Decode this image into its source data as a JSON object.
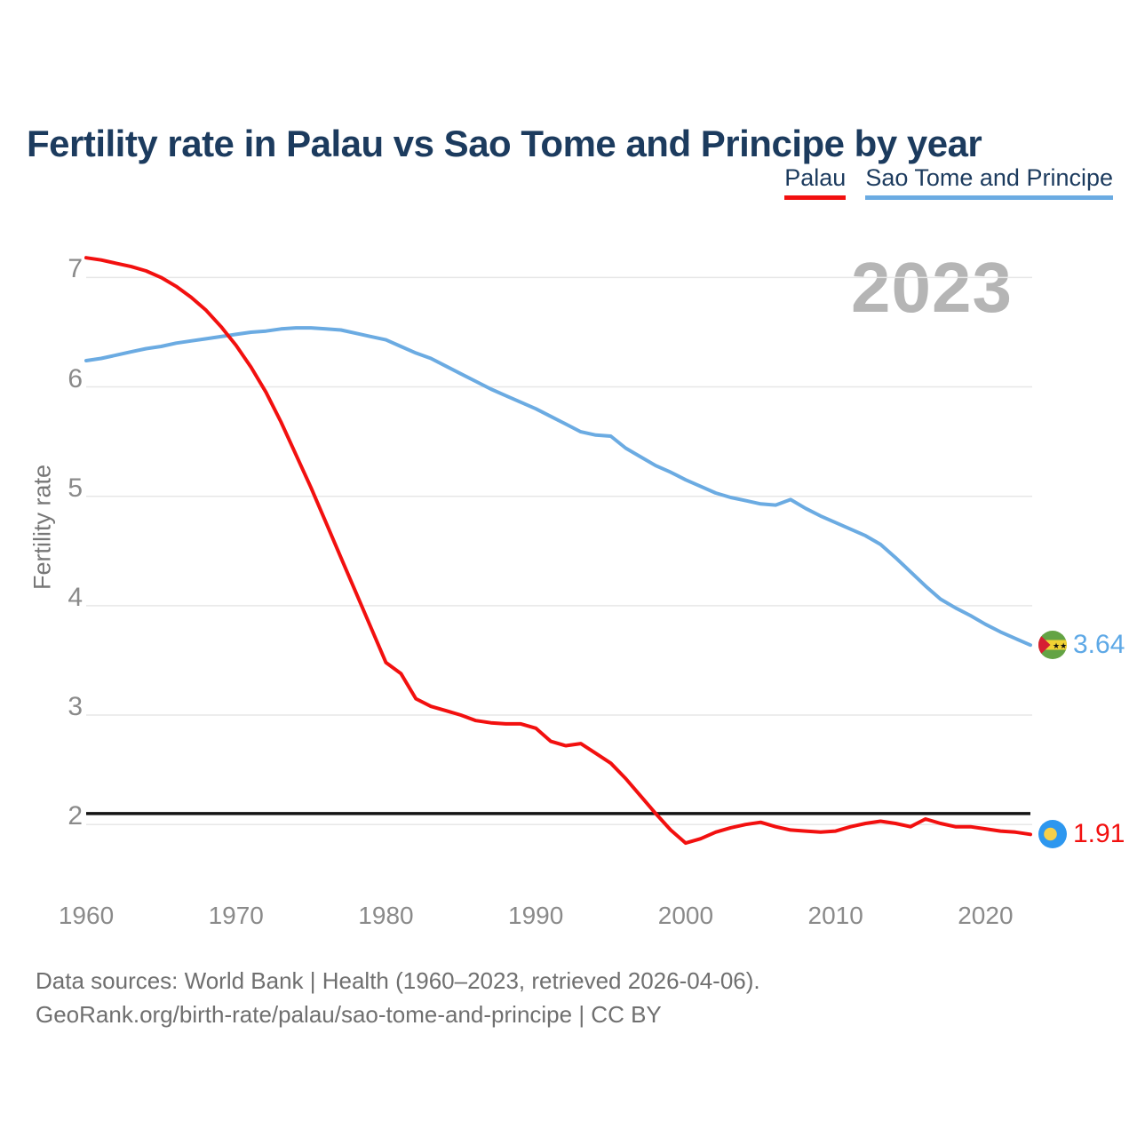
{
  "header": {
    "title": "Fertility rate in Palau vs Sao Tome and Principe by year"
  },
  "legend": {
    "items": [
      {
        "label": "Palau",
        "color": "#f2100f"
      },
      {
        "label": "Sao Tome and Principe",
        "color": "#6babe2"
      }
    ]
  },
  "watermark": "2023",
  "axes": {
    "y_title": "Fertility rate",
    "y_ticks": [
      7,
      6,
      5,
      4,
      3,
      2
    ],
    "x_ticks": [
      1960,
      1970,
      1980,
      1990,
      2000,
      2010,
      2020
    ]
  },
  "annotations": {
    "sao_tome_end_value": "3.64",
    "palau_end_value": "1.91"
  },
  "footer": {
    "line1": "Data sources: World Bank | Health (1960–2023, retrieved 2026-04-06).",
    "line2": "GeoRank.org/birth-rate/palau/sao-tome-and-principe | CC BY"
  },
  "colors": {
    "palau_line": "#f2100f",
    "sao_tome_line": "#6babe2",
    "title_text": "#1c3b5e",
    "axis_text": "#8a8a8a",
    "footer_text": "#6f6f6f",
    "gridline": "#e7e7e7",
    "reference_line": "#141414",
    "watermark": "#b5b5b5"
  },
  "chart_data": {
    "type": "line",
    "title": "Fertility rate in Palau vs Sao Tome and Principe by year",
    "xlabel": "",
    "ylabel": "Fertility rate",
    "x_range": [
      1960,
      2023
    ],
    "ylim": [
      1.6,
      7.4
    ],
    "grid": "horizontal",
    "legend_position": "top-right",
    "reference_line": 2.1,
    "x": [
      1960,
      1961,
      1962,
      1963,
      1964,
      1965,
      1966,
      1967,
      1968,
      1969,
      1970,
      1971,
      1972,
      1973,
      1974,
      1975,
      1976,
      1977,
      1978,
      1979,
      1980,
      1981,
      1982,
      1983,
      1984,
      1985,
      1986,
      1987,
      1988,
      1989,
      1990,
      1991,
      1992,
      1993,
      1994,
      1995,
      1996,
      1997,
      1998,
      1999,
      2000,
      2001,
      2002,
      2003,
      2004,
      2005,
      2006,
      2007,
      2008,
      2009,
      2010,
      2011,
      2012,
      2013,
      2014,
      2015,
      2016,
      2017,
      2018,
      2019,
      2020,
      2021,
      2022,
      2023
    ],
    "series": [
      {
        "name": "Palau",
        "color": "#f2100f",
        "end_label": "1.91",
        "values": [
          7.18,
          7.16,
          7.13,
          7.1,
          7.06,
          7.0,
          6.92,
          6.82,
          6.7,
          6.55,
          6.38,
          6.18,
          5.95,
          5.68,
          5.38,
          5.08,
          4.76,
          4.44,
          4.12,
          3.8,
          3.48,
          3.38,
          3.15,
          3.08,
          3.04,
          3.0,
          2.95,
          2.93,
          2.92,
          2.92,
          2.88,
          2.76,
          2.72,
          2.74,
          2.65,
          2.56,
          2.42,
          2.26,
          2.1,
          1.95,
          1.83,
          1.87,
          1.93,
          1.97,
          2.0,
          2.02,
          1.98,
          1.95,
          1.94,
          1.93,
          1.94,
          1.98,
          2.01,
          2.03,
          2.01,
          1.98,
          2.05,
          2.01,
          1.98,
          1.98,
          1.96,
          1.94,
          1.93,
          1.91
        ]
      },
      {
        "name": "Sao Tome and Principe",
        "color": "#6babe2",
        "end_label": "3.64",
        "values": [
          6.24,
          6.26,
          6.29,
          6.32,
          6.35,
          6.37,
          6.4,
          6.42,
          6.44,
          6.46,
          6.48,
          6.5,
          6.51,
          6.53,
          6.54,
          6.54,
          6.53,
          6.52,
          6.49,
          6.46,
          6.43,
          6.37,
          6.31,
          6.26,
          6.19,
          6.12,
          6.05,
          5.98,
          5.92,
          5.86,
          5.8,
          5.73,
          5.66,
          5.59,
          5.56,
          5.55,
          5.44,
          5.36,
          5.28,
          5.22,
          5.15,
          5.09,
          5.03,
          4.99,
          4.96,
          4.93,
          4.92,
          4.97,
          4.89,
          4.82,
          4.76,
          4.7,
          4.64,
          4.56,
          4.44,
          4.31,
          4.18,
          4.06,
          3.98,
          3.91,
          3.83,
          3.76,
          3.7,
          3.64
        ]
      }
    ]
  }
}
